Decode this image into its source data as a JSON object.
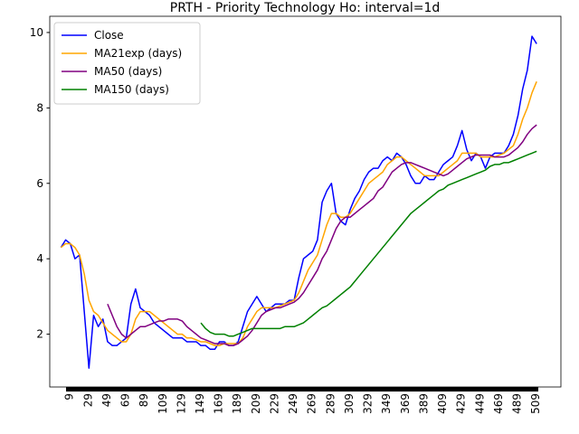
{
  "chart_data": {
    "type": "line",
    "title": "PRTH - Priority Technology Ho: interval=1d",
    "x": [
      0,
      5,
      10,
      15,
      20,
      25,
      30,
      35,
      40,
      45,
      50,
      55,
      60,
      65,
      70,
      75,
      80,
      85,
      90,
      95,
      100,
      105,
      110,
      115,
      120,
      125,
      130,
      135,
      140,
      145,
      150,
      155,
      160,
      165,
      170,
      175,
      180,
      185,
      190,
      195,
      200,
      205,
      210,
      215,
      220,
      225,
      230,
      235,
      240,
      245,
      250,
      255,
      260,
      265,
      270,
      275,
      280,
      285,
      290,
      295,
      300,
      305,
      310,
      315,
      320,
      325,
      330,
      335,
      340,
      345,
      350,
      355,
      360,
      365,
      370,
      375,
      380,
      385,
      390,
      395,
      400,
      405,
      410,
      415,
      420,
      425,
      430,
      435,
      440,
      445,
      450,
      455,
      460,
      465,
      470,
      475,
      480,
      485,
      490,
      495,
      500,
      505,
      510
    ],
    "series": [
      {
        "name": "Close",
        "color": "#0000ff",
        "values": [
          4.3,
          4.5,
          4.4,
          4.0,
          4.1,
          2.6,
          1.1,
          2.5,
          2.2,
          2.4,
          1.8,
          1.7,
          1.7,
          1.8,
          1.9,
          2.8,
          3.2,
          2.7,
          2.6,
          2.5,
          2.3,
          2.2,
          2.1,
          2.0,
          1.9,
          1.9,
          1.9,
          1.8,
          1.8,
          1.8,
          1.7,
          1.7,
          1.6,
          1.6,
          1.8,
          1.8,
          1.7,
          1.7,
          1.8,
          2.2,
          2.6,
          2.8,
          3.0,
          2.8,
          2.6,
          2.7,
          2.8,
          2.8,
          2.8,
          2.9,
          2.9,
          3.5,
          4.0,
          4.1,
          4.2,
          4.5,
          5.5,
          5.8,
          6.0,
          5.2,
          5.0,
          4.9,
          5.3,
          5.6,
          5.8,
          6.1,
          6.3,
          6.4,
          6.4,
          6.6,
          6.7,
          6.6,
          6.8,
          6.7,
          6.5,
          6.2,
          6.0,
          6.0,
          6.2,
          6.1,
          6.1,
          6.3,
          6.5,
          6.6,
          6.7,
          7.0,
          7.4,
          6.9,
          6.6,
          6.8,
          6.7,
          6.4,
          6.7,
          6.8,
          6.8,
          6.8,
          7.0,
          7.3,
          7.8,
          8.5,
          9.0,
          9.9,
          9.7
        ]
      },
      {
        "name": "MA21exp (days)",
        "color": "#ffa500",
        "values": [
          4.3,
          4.4,
          4.4,
          4.3,
          4.1,
          3.6,
          2.9,
          2.6,
          2.5,
          2.3,
          2.1,
          2.0,
          1.9,
          1.8,
          1.8,
          2.0,
          2.4,
          2.6,
          2.6,
          2.6,
          2.5,
          2.4,
          2.3,
          2.2,
          2.1,
          2.0,
          2.0,
          1.9,
          1.9,
          1.85,
          1.8,
          1.8,
          1.75,
          1.7,
          1.7,
          1.75,
          1.75,
          1.75,
          1.75,
          1.9,
          2.2,
          2.4,
          2.6,
          2.7,
          2.7,
          2.7,
          2.7,
          2.75,
          2.8,
          2.85,
          2.9,
          3.1,
          3.4,
          3.7,
          3.9,
          4.1,
          4.5,
          4.9,
          5.2,
          5.2,
          5.1,
          5.1,
          5.2,
          5.4,
          5.6,
          5.8,
          6.0,
          6.1,
          6.2,
          6.3,
          6.5,
          6.6,
          6.7,
          6.7,
          6.6,
          6.5,
          6.4,
          6.3,
          6.2,
          6.2,
          6.2,
          6.2,
          6.3,
          6.4,
          6.5,
          6.6,
          6.8,
          6.8,
          6.8,
          6.8,
          6.7,
          6.7,
          6.7,
          6.7,
          6.75,
          6.8,
          6.9,
          7.0,
          7.3,
          7.7,
          8.0,
          8.4,
          8.7
        ]
      },
      {
        "name": "MA50 (days)",
        "color": "#800080",
        "values": [
          null,
          null,
          null,
          null,
          null,
          null,
          null,
          null,
          null,
          null,
          2.8,
          2.5,
          2.2,
          2.0,
          1.9,
          2.0,
          2.1,
          2.2,
          2.2,
          2.25,
          2.3,
          2.35,
          2.35,
          2.4,
          2.4,
          2.4,
          2.35,
          2.2,
          2.1,
          2.0,
          1.9,
          1.85,
          1.8,
          1.75,
          1.75,
          1.75,
          1.7,
          1.7,
          1.75,
          1.85,
          1.95,
          2.1,
          2.3,
          2.5,
          2.6,
          2.65,
          2.7,
          2.7,
          2.75,
          2.8,
          2.85,
          2.95,
          3.1,
          3.3,
          3.5,
          3.7,
          4.0,
          4.2,
          4.5,
          4.8,
          5.0,
          5.1,
          5.1,
          5.2,
          5.3,
          5.4,
          5.5,
          5.6,
          5.8,
          5.9,
          6.1,
          6.3,
          6.4,
          6.5,
          6.55,
          6.55,
          6.5,
          6.45,
          6.4,
          6.35,
          6.3,
          6.25,
          6.2,
          6.25,
          6.35,
          6.45,
          6.55,
          6.65,
          6.7,
          6.75,
          6.75,
          6.75,
          6.75,
          6.7,
          6.7,
          6.7,
          6.75,
          6.85,
          6.95,
          7.1,
          7.3,
          7.45,
          7.55
        ]
      },
      {
        "name": "MA150 (days)",
        "color": "#008000",
        "values": [
          null,
          null,
          null,
          null,
          null,
          null,
          null,
          null,
          null,
          null,
          null,
          null,
          null,
          null,
          null,
          null,
          null,
          null,
          null,
          null,
          null,
          null,
          null,
          null,
          null,
          null,
          null,
          null,
          null,
          null,
          2.3,
          2.15,
          2.05,
          2.0,
          2.0,
          2.0,
          1.95,
          1.95,
          2.0,
          2.05,
          2.1,
          2.15,
          2.15,
          2.15,
          2.15,
          2.15,
          2.15,
          2.15,
          2.2,
          2.2,
          2.2,
          2.25,
          2.3,
          2.4,
          2.5,
          2.6,
          2.7,
          2.75,
          2.85,
          2.95,
          3.05,
          3.15,
          3.25,
          3.4,
          3.55,
          3.7,
          3.85,
          4.0,
          4.15,
          4.3,
          4.45,
          4.6,
          4.75,
          4.9,
          5.05,
          5.2,
          5.3,
          5.4,
          5.5,
          5.6,
          5.7,
          5.8,
          5.85,
          5.95,
          6.0,
          6.05,
          6.1,
          6.15,
          6.2,
          6.25,
          6.3,
          6.35,
          6.45,
          6.5,
          6.5,
          6.55,
          6.55,
          6.6,
          6.65,
          6.7,
          6.75,
          6.8,
          6.85
        ]
      }
    ],
    "xlim": [
      -12,
      536
    ],
    "xticks": [
      9,
      29,
      49,
      69,
      89,
      109,
      129,
      149,
      169,
      189,
      209,
      229,
      249,
      269,
      289,
      309,
      329,
      349,
      369,
      389,
      409,
      429,
      449,
      469,
      489,
      509
    ],
    "ylim": [
      0.6,
      10.43
    ],
    "yticks": [
      2,
      4,
      6,
      8,
      10
    ],
    "legend": "upper left"
  }
}
